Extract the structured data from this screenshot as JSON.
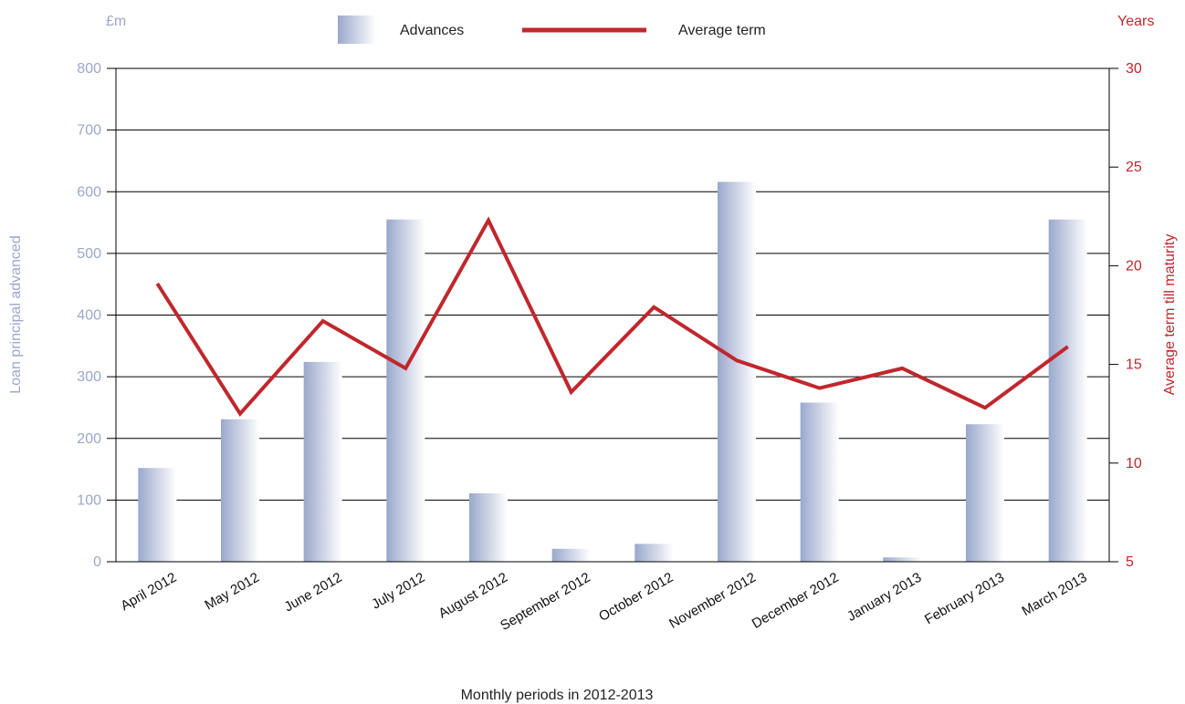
{
  "chart_data": {
    "type": "bar",
    "categories": [
      "April 2012",
      "May 2012",
      "June 2012",
      "July 2012",
      "August 2012",
      "September 2012",
      "October 2012",
      "November 2012",
      "December 2012",
      "January 2013",
      "February 2013",
      "March 2013"
    ],
    "series": [
      {
        "name": "Advances",
        "type": "bar",
        "axis": "left",
        "color": "#9aa8cc",
        "values": [
          152,
          231,
          324,
          555,
          111,
          21,
          29,
          616,
          258,
          7,
          223,
          555
        ]
      },
      {
        "name": "Average term",
        "type": "line",
        "axis": "right",
        "color": "#c0272d",
        "values": [
          19.1,
          12.5,
          17.2,
          14.8,
          22.3,
          13.6,
          17.9,
          15.2,
          13.8,
          14.8,
          12.8,
          15.9
        ]
      }
    ],
    "y_left": {
      "unit": "£m",
      "label": "Loan principal advanced",
      "ylim": [
        0,
        800
      ],
      "ticks": [
        0,
        100,
        200,
        300,
        400,
        500,
        600,
        700,
        800
      ],
      "color": "#9aa8cc"
    },
    "y_right": {
      "unit": "Years",
      "label": "Average term till maturity",
      "ylim": [
        5,
        30
      ],
      "ticks": [
        5,
        10,
        15,
        20,
        25,
        30
      ],
      "color": "#c0272d"
    },
    "xlabel": "Monthly periods in 2012-2013",
    "grid": true,
    "legend": "top-center"
  }
}
